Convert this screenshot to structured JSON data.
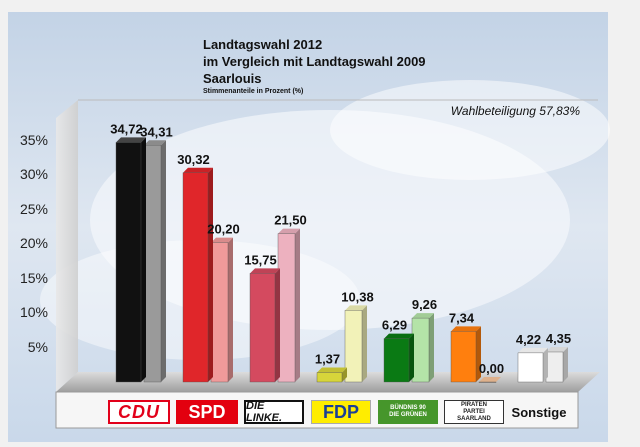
{
  "chart_data": {
    "type": "bar",
    "title": "Landtagswahl 2012",
    "subtitle_lines": [
      "im Vergleich mit Landtagswahl 2009",
      "Saarlouis"
    ],
    "note": "Stimmenanteile in Prozent (%)",
    "turnout": "Wahlbeteiligung 57,83%",
    "categories": [
      "CDU",
      "SPD",
      "DIE LINKE.",
      "FDP",
      "BÜNDNIS 90 DIE GRÜNEN",
      "PIRATEN PARTEI SAARLAND",
      "Sonstige"
    ],
    "series": [
      {
        "values": [
          34.72,
          30.32,
          15.75,
          1.37,
          6.29,
          7.34,
          4.22
        ],
        "labels": [
          "34,72",
          "30,32",
          "15,75",
          "1,37",
          "6,29",
          "7,34",
          "4,22"
        ]
      },
      {
        "values": [
          34.31,
          20.2,
          21.5,
          10.38,
          9.26,
          0.0,
          4.35
        ],
        "labels": [
          "34,31",
          "20,20",
          "21,50",
          "10,38",
          "9,26",
          "0,00",
          "4,35"
        ]
      }
    ],
    "colors_2012": [
      "#111111",
      "#e0262a",
      "#d44a5f",
      "#d7d53a",
      "#0a7a14",
      "#ff7f0e",
      "#ffffff"
    ],
    "colors_2009": [
      "#9a9a9a",
      "#f09a9a",
      "#edb1bf",
      "#f2f2b8",
      "#b4e3a8",
      "#f7c59b",
      "#eeeeee"
    ],
    "yticks": [
      "5%",
      "10%",
      "15%",
      "20%",
      "25%",
      "30%",
      "35%"
    ],
    "ytick_values": [
      5,
      10,
      15,
      20,
      25,
      30,
      35
    ],
    "ylim": [
      0,
      35
    ],
    "grid": false
  },
  "logos": {
    "cdu": "CDU",
    "spd": "SPD",
    "linke": "DIE LINKE.",
    "fdp": "FDP",
    "gruene_1": "BÜNDNIS 90",
    "gruene_2": "DIE GRÜNEN",
    "piraten_1": "PIRATEN",
    "piraten_2": "PARTEI",
    "piraten_3": "SAARLAND",
    "sonstige": "Sonstige"
  }
}
